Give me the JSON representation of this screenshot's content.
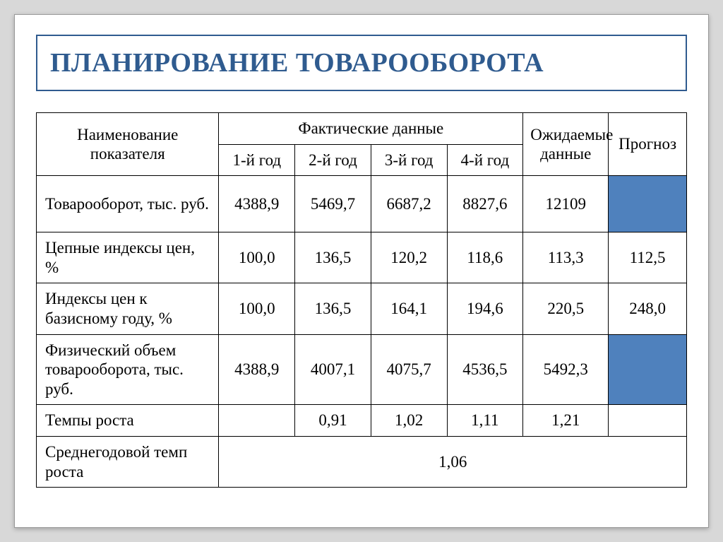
{
  "slide": {
    "title": "ПЛАНИРОВАНИЕ ТОВАРООБОРОТА",
    "table": {
      "header": {
        "row_label": "Наименование показателя",
        "factual_group": "Фактические данные",
        "years": [
          "1-й год",
          "2-й год",
          "3-й год",
          "4-й год"
        ],
        "expected": "Ожидаемые данные",
        "forecast": "Прогноз"
      },
      "rows": [
        {
          "label": "Товарооборот, тыс. руб.",
          "y1": "4388,9",
          "y2": "5469,7",
          "y3": "6687,2",
          "y4": "8827,6",
          "expected": "12109",
          "forecast": "",
          "forecast_blue": true
        },
        {
          "label": "Цепные индексы цен, %",
          "y1": "100,0",
          "y2": "136,5",
          "y3": "120,2",
          "y4": "118,6",
          "expected": "113,3",
          "forecast": "112,5",
          "forecast_blue": false
        },
        {
          "label": "Индексы цен к базисному году, %",
          "y1": "100,0",
          "y2": "136,5",
          "y3": "164,1",
          "y4": "194,6",
          "expected": "220,5",
          "forecast": "248,0",
          "forecast_blue": false
        },
        {
          "label": "Физический объем товарооборота, тыс. руб.",
          "y1": "4388,9",
          "y2": "4007,1",
          "y3": "4075,7",
          "y4": "4536,5",
          "expected": "5492,3",
          "forecast": "",
          "forecast_blue": true
        },
        {
          "label": "Темпы роста",
          "y1": "",
          "y2": "0,91",
          "y3": "1,02",
          "y4": "1,11",
          "expected": "1,21",
          "forecast": "",
          "forecast_blue": false
        }
      ],
      "summary": {
        "label": "Среднегодовой темп роста",
        "value": "1,06"
      }
    },
    "colors": {
      "title_border": "#2f5b8f",
      "title_text": "#2f5b8f",
      "table_border": "#000000",
      "blue_fill": "#4f81bd",
      "background": "#ffffff",
      "page_background": "#d8d8d8"
    },
    "typography": {
      "title_fontsize_pt": 28,
      "body_fontsize_pt": 17,
      "font_family": "Times New Roman"
    }
  }
}
